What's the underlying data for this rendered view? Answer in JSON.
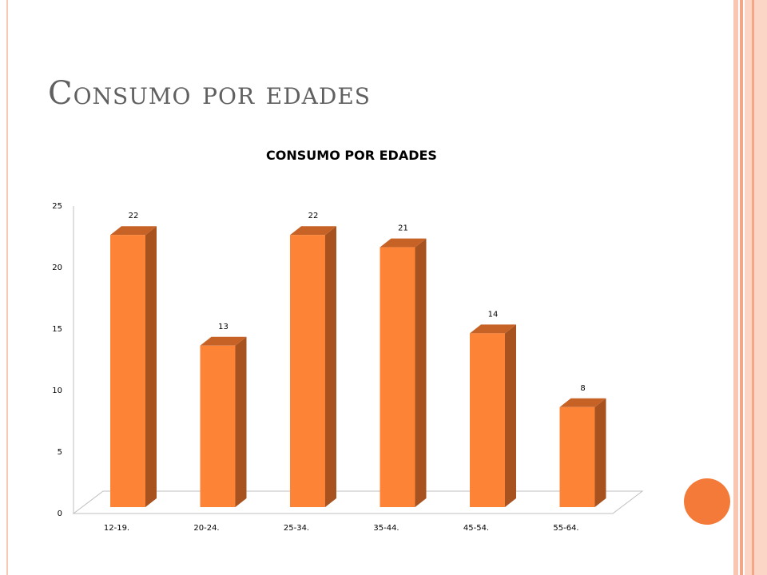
{
  "slide": {
    "title": "Consumo por edades"
  },
  "theme": {
    "bar_front": "#fd8437",
    "bar_side": "#a8531f",
    "bar_top": "#c76227",
    "accent_circle": "#f37a38",
    "stripe_colors": [
      "#f9c6b2",
      "#f4a787",
      "#fbd6c6"
    ]
  },
  "chart_data": {
    "type": "bar",
    "title": "CONSUMO POR EDADES",
    "categories": [
      "12-19.",
      "20-24.",
      "25-34.",
      "35-44.",
      "45-54.",
      "55-64."
    ],
    "values": [
      22,
      13,
      22,
      21,
      14,
      8
    ],
    "ylim": [
      0,
      25
    ],
    "yticks": [
      0,
      5,
      10,
      15,
      20,
      25
    ],
    "data_labels": true,
    "legend": false,
    "grid": false,
    "style": "3d-column"
  }
}
